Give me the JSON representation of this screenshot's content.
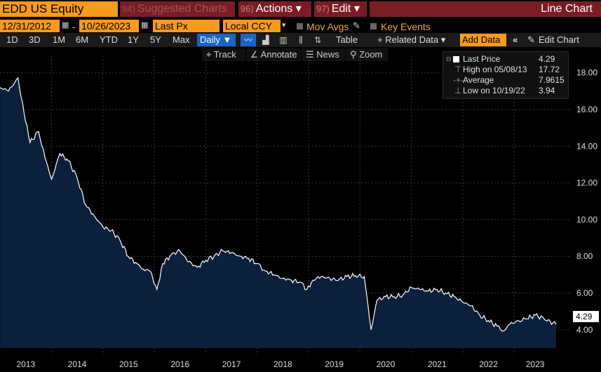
{
  "toolbar": {
    "ticker": "EDD US Equity",
    "suggested": {
      "num": "94)",
      "label": "Suggested Charts"
    },
    "actions": {
      "num": "96)",
      "label": "Actions",
      "caret": "▾"
    },
    "edit": {
      "num": "97)",
      "label": "Edit",
      "caret": "▾"
    },
    "title": "Line Chart"
  },
  "controls": {
    "start_date": "12/31/2012",
    "dash": "-",
    "end_date": "10/26/2023",
    "field": "Last Px",
    "currency": "Local CCY",
    "mov_avgs": "Mov Avgs",
    "key_events": "Key Events"
  },
  "ranges": [
    "1D",
    "3D",
    "1M",
    "6M",
    "YTD",
    "1Y",
    "5Y",
    "Max"
  ],
  "frequency": "Daily ▼",
  "table_label": "Table",
  "related_data": "+ Related Data ▾",
  "add_data": "Add Data",
  "collapse": "«",
  "edit_chart": "Edit Chart",
  "subtools": [
    "Track",
    "Annotate",
    "News",
    "Zoom"
  ],
  "legend": {
    "last_price": {
      "label": "Last Price",
      "value": "4.29"
    },
    "high": {
      "label": "High on 05/08/13",
      "value": "17.72"
    },
    "average": {
      "label": "Average",
      "value": "7.9615"
    },
    "low": {
      "label": "Low on 10/19/22",
      "value": "3.94"
    }
  },
  "last_badge": "4.29",
  "colors": {
    "accent": "#f79a1e",
    "header_red": "#7a1c26",
    "fill": "#0c1f3c",
    "line": "#ffffff",
    "selected_blue": "#1c64c8"
  },
  "chart_data": {
    "type": "area",
    "series": [
      {
        "x": [
          "2013-01-01",
          "2013-03-01",
          "2013-05-08",
          "2013-06-20",
          "2013-08-01",
          "2013-10-01",
          "2013-11-15",
          "2014-01-01",
          "2014-03-01",
          "2014-05-01",
          "2014-07-01",
          "2014-09-01",
          "2014-11-01",
          "2015-01-01",
          "2015-03-01",
          "2015-05-01",
          "2015-07-01",
          "2015-09-01",
          "2015-10-15",
          "2015-12-01",
          "2016-01-20",
          "2016-03-01",
          "2016-05-01",
          "2016-07-01",
          "2016-09-01",
          "2016-11-01",
          "2017-01-01",
          "2017-03-01",
          "2017-05-01",
          "2017-07-01",
          "2017-09-01",
          "2017-11-01",
          "2018-01-01",
          "2018-03-01",
          "2018-05-01",
          "2018-07-01",
          "2018-09-01",
          "2018-11-01",
          "2018-12-20",
          "2019-02-01",
          "2019-04-01",
          "2019-06-01",
          "2019-08-01",
          "2019-10-01",
          "2019-12-01",
          "2020-02-01",
          "2020-03-20",
          "2020-05-01",
          "2020-07-01",
          "2020-09-01",
          "2020-11-01",
          "2021-01-01",
          "2021-03-01",
          "2021-05-01",
          "2021-07-01",
          "2021-09-01",
          "2021-11-01",
          "2022-01-01",
          "2022-03-01",
          "2022-05-01",
          "2022-07-01",
          "2022-09-01",
          "2022-10-19",
          "2022-12-01",
          "2023-02-01",
          "2023-04-01",
          "2023-06-01",
          "2023-08-01",
          "2023-10-26"
        ],
        "y": [
          17.2,
          17.0,
          17.72,
          15.8,
          14.2,
          14.8,
          13.4,
          12.2,
          13.6,
          13.2,
          12.3,
          10.8,
          10.2,
          9.6,
          9.4,
          8.9,
          8.0,
          7.6,
          7.3,
          7.2,
          6.2,
          7.6,
          8.1,
          8.3,
          7.7,
          7.4,
          7.8,
          8.0,
          8.3,
          8.2,
          8.0,
          7.9,
          7.6,
          7.2,
          7.0,
          6.8,
          6.7,
          6.6,
          6.2,
          6.7,
          6.9,
          6.8,
          6.7,
          6.9,
          6.95,
          6.9,
          4.0,
          5.6,
          5.8,
          5.8,
          5.9,
          6.3,
          6.2,
          6.1,
          6.2,
          6.0,
          5.8,
          5.5,
          5.3,
          4.8,
          4.5,
          4.2,
          3.94,
          4.3,
          4.5,
          4.6,
          4.8,
          4.6,
          4.29
        ],
        "name": ""
      }
    ],
    "ylim": [
      3.0,
      18.6
    ],
    "y_ticks": [
      "18.00",
      "16.00",
      "14.00",
      "12.00",
      "10.00",
      "8.00",
      "6.00",
      "4.00"
    ],
    "x_ticks": [
      "2013",
      "2014",
      "2015",
      "2016",
      "2017",
      "2018",
      "2019",
      "2020",
      "2021",
      "2022",
      "2023"
    ],
    "xlim": [
      "2012-12-31",
      "2023-10-26"
    ],
    "grid": true,
    "legend_position": "top-right"
  }
}
